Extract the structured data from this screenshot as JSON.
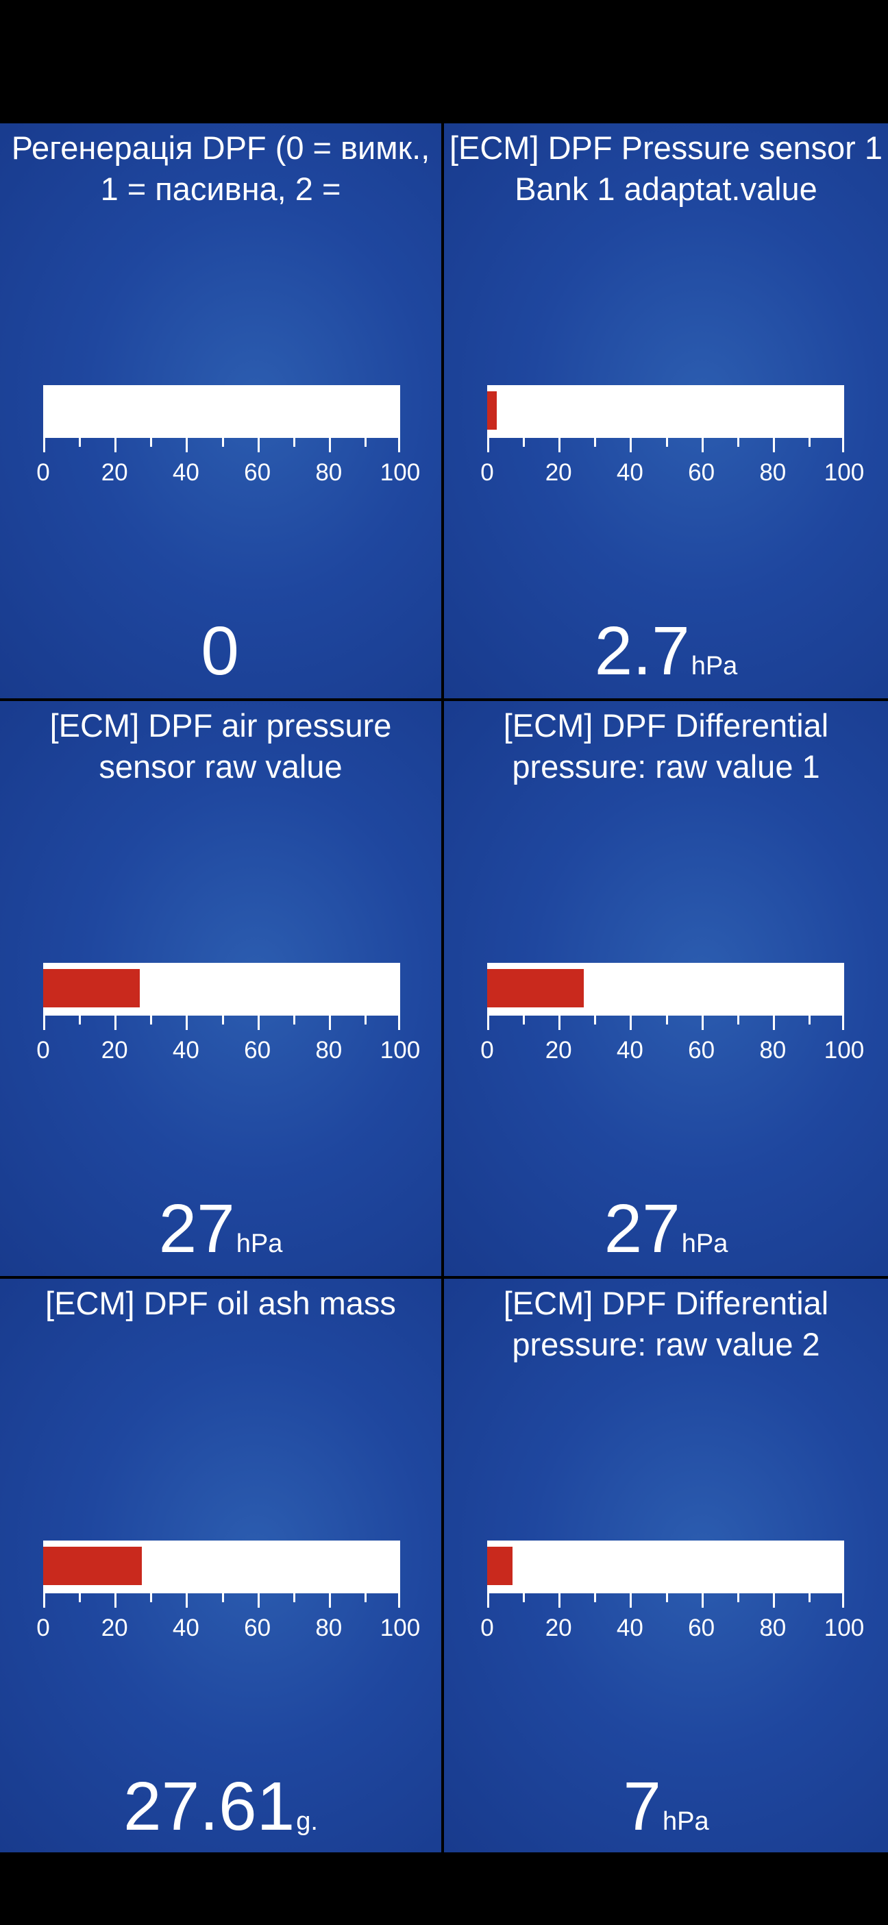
{
  "scale": {
    "min": 0,
    "max": 100,
    "labels": [
      "0",
      "20",
      "40",
      "60",
      "80",
      "100"
    ]
  },
  "colors": {
    "tile_background": "#1f479f",
    "bar_track": "#ffffff",
    "bar_fill": "#c9291d",
    "text": "#ffffff"
  },
  "gauges": [
    {
      "title": "Регенерація DPF (0 = вимк., 1 = пасивна, 2 =",
      "value": "0",
      "unit": "",
      "bar_value": 0
    },
    {
      "title": "[ECM] DPF Pressure sensor 1 Bank 1 adaptat.value",
      "value": "2.7",
      "unit": "hPa",
      "bar_value": 2.7
    },
    {
      "title": "[ECM] DPF air pressure sensor raw value",
      "value": "27",
      "unit": "hPa",
      "bar_value": 27
    },
    {
      "title": "[ECM] DPF Differential pressure: raw value 1",
      "value": "27",
      "unit": "hPa",
      "bar_value": 27
    },
    {
      "title": "[ECM] DPF oil ash mass",
      "value": "27.61",
      "unit": "g.",
      "bar_value": 27.61
    },
    {
      "title": "[ECM] DPF Differential pressure: raw value 2",
      "value": "7",
      "unit": "hPa",
      "bar_value": 7
    }
  ]
}
